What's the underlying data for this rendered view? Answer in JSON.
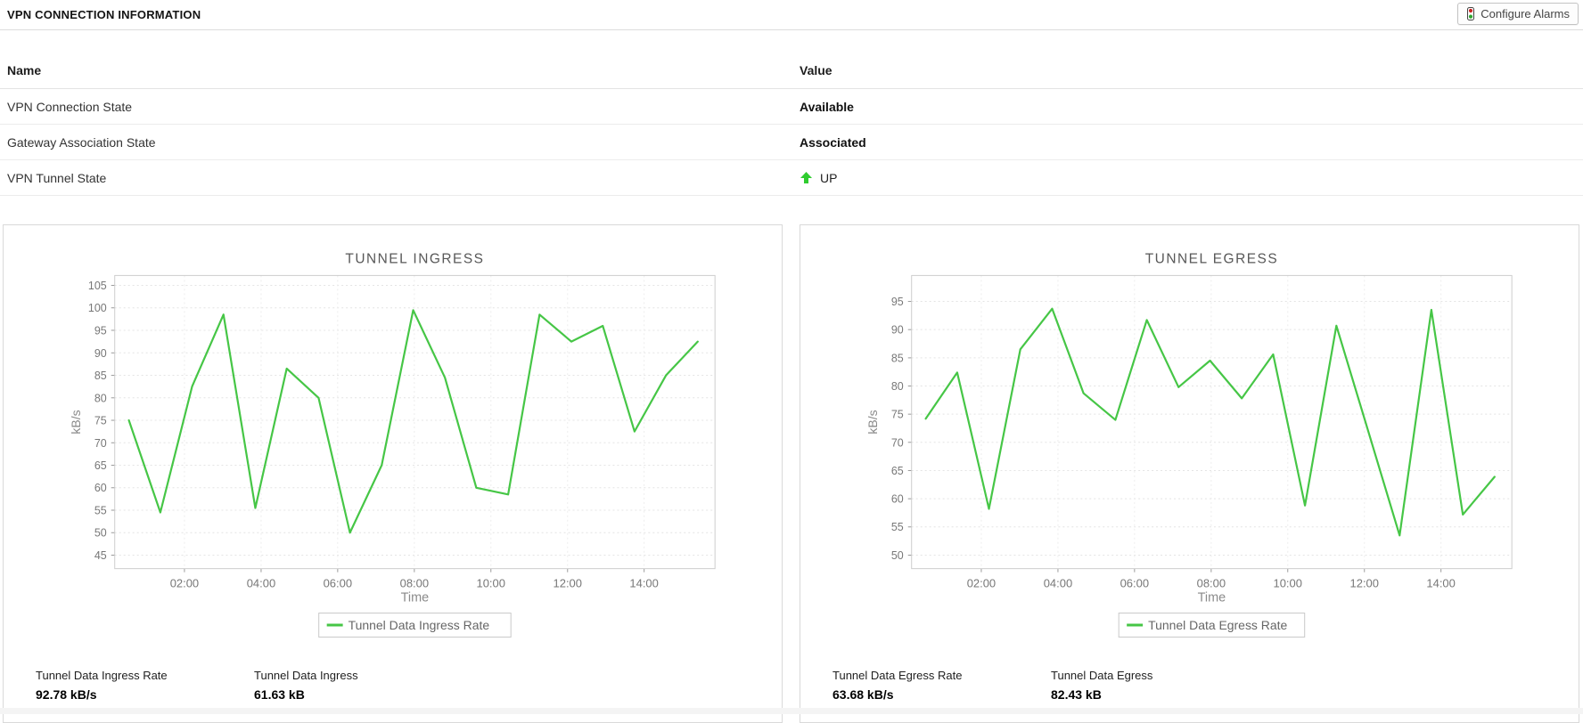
{
  "header": {
    "title": "VPN CONNECTION INFORMATION",
    "configure_alarms_label": "Configure Alarms"
  },
  "info_table": {
    "name_header": "Name",
    "value_header": "Value",
    "rows": [
      {
        "name": "VPN Connection State",
        "value": "Available"
      },
      {
        "name": "Gateway Association State",
        "value": "Associated"
      },
      {
        "name": "VPN Tunnel State",
        "value": "UP"
      }
    ]
  },
  "colors": {
    "chart_line": "#46c646",
    "up_arrow": "#2fcc2f",
    "alarm_red": "#cc2222",
    "alarm_green": "#2fa32f"
  },
  "chart_data": [
    {
      "type": "line",
      "title": "TUNNEL INGRESS",
      "xlabel": "Time",
      "ylabel": "kB/s",
      "legend": "Tunnel Data Ingress Rate",
      "x_hours": [
        0.55,
        1.37,
        2.2,
        3.02,
        3.85,
        4.67,
        5.5,
        6.32,
        7.15,
        7.97,
        8.8,
        9.62,
        10.45,
        11.27,
        12.1,
        12.92,
        13.75,
        14.57,
        15.4
      ],
      "values": [
        75,
        54.5,
        82.5,
        98.5,
        55.5,
        86.5,
        80,
        50,
        65,
        99.5,
        84.5,
        60,
        58.5,
        98.5,
        92.5,
        96,
        72.5,
        85,
        92.5
      ],
      "x_ticks": [
        {
          "t": 2,
          "label": "02:00"
        },
        {
          "t": 4,
          "label": "04:00"
        },
        {
          "t": 6,
          "label": "06:00"
        },
        {
          "t": 8,
          "label": "08:00"
        },
        {
          "t": 10,
          "label": "10:00"
        },
        {
          "t": 12,
          "label": "12:00"
        },
        {
          "t": 14,
          "label": "14:00"
        }
      ],
      "y_ticks": [
        45,
        50,
        55,
        60,
        65,
        70,
        75,
        80,
        85,
        90,
        95,
        100,
        105
      ],
      "xlim": [
        0.18,
        15.85
      ],
      "ylim": [
        42,
        107.2
      ],
      "grid": true,
      "legend_position": "bottom",
      "stats": [
        {
          "label": "Tunnel Data Ingress Rate",
          "value": "92.78 kB/s"
        },
        {
          "label": "Tunnel Data Ingress",
          "value": "61.63 kB"
        }
      ]
    },
    {
      "type": "line",
      "title": "TUNNEL EGRESS",
      "xlabel": "Time",
      "ylabel": "kB/s",
      "legend": "Tunnel Data Egress Rate",
      "x_hours": [
        0.55,
        1.37,
        2.2,
        3.02,
        3.85,
        4.67,
        5.5,
        6.32,
        7.15,
        7.97,
        8.8,
        9.62,
        10.45,
        11.27,
        12.1,
        12.92,
        13.75,
        14.57,
        15.4
      ],
      "values": [
        74.2,
        82.4,
        58.2,
        86.5,
        93.7,
        78.7,
        74,
        91.7,
        79.8,
        84.5,
        77.8,
        85.6,
        58.8,
        90.7,
        72,
        53.5,
        93.5,
        57.2,
        63.9
      ],
      "x_ticks": [
        {
          "t": 2,
          "label": "02:00"
        },
        {
          "t": 4,
          "label": "04:00"
        },
        {
          "t": 6,
          "label": "06:00"
        },
        {
          "t": 8,
          "label": "08:00"
        },
        {
          "t": 10,
          "label": "10:00"
        },
        {
          "t": 12,
          "label": "12:00"
        },
        {
          "t": 14,
          "label": "14:00"
        }
      ],
      "y_ticks": [
        50,
        55,
        60,
        65,
        70,
        75,
        80,
        85,
        90,
        95
      ],
      "xlim": [
        0.18,
        15.85
      ],
      "ylim": [
        47.6,
        99.6
      ],
      "grid": true,
      "legend_position": "bottom",
      "stats": [
        {
          "label": "Tunnel Data Egress Rate",
          "value": "63.68 kB/s"
        },
        {
          "label": "Tunnel Data Egress",
          "value": "82.43 kB"
        }
      ]
    }
  ]
}
